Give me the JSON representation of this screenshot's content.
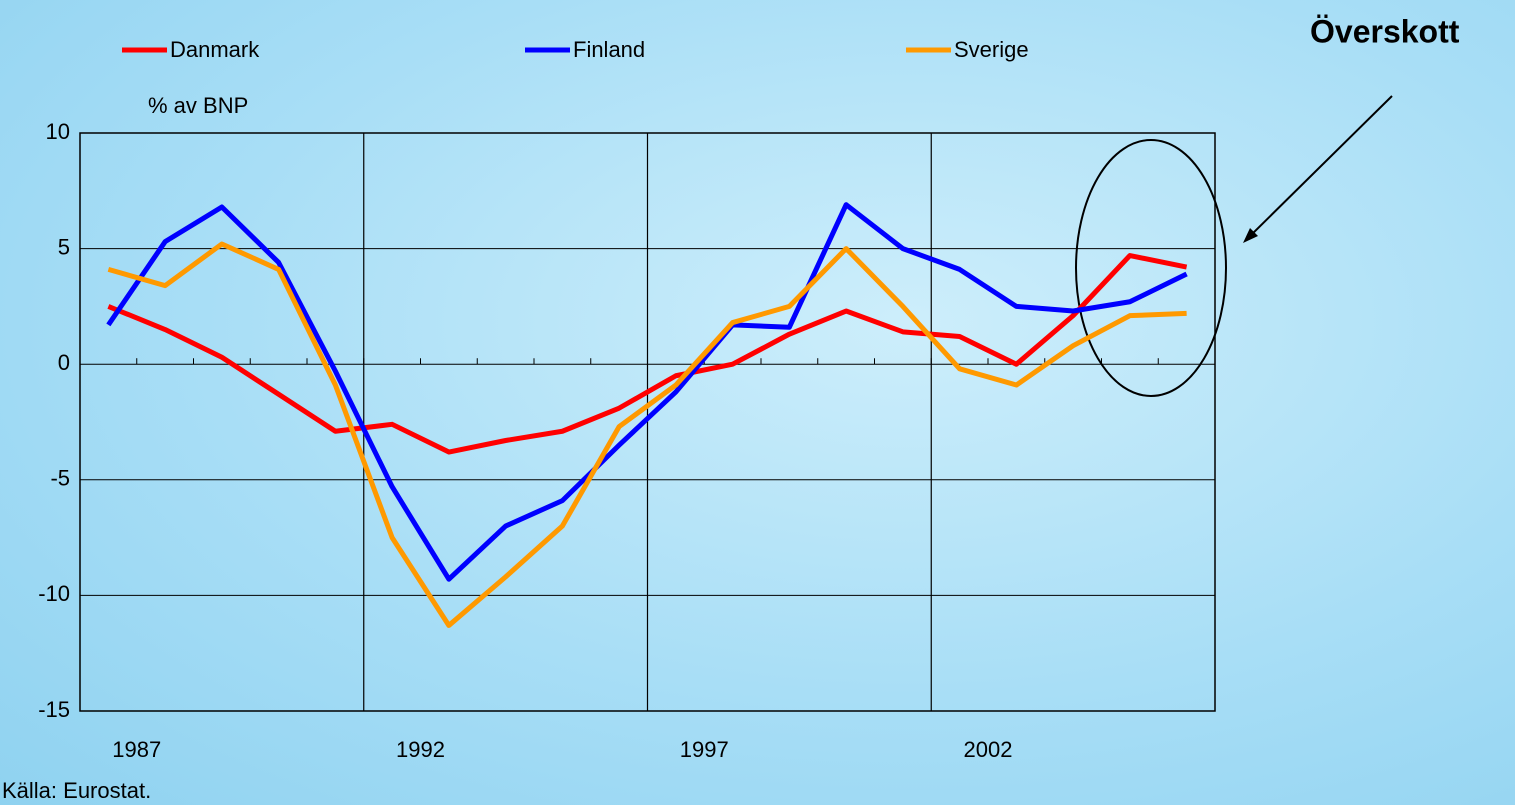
{
  "chart_data": {
    "type": "line",
    "y_label": "% av BNP",
    "annotation": "Överskott",
    "source": "Källa: Eurostat.",
    "categories": [
      "1987",
      null,
      null,
      null,
      null,
      "1992",
      null,
      null,
      null,
      null,
      "1997",
      null,
      null,
      null,
      null,
      "2002",
      null,
      null,
      null,
      null
    ],
    "series": [
      {
        "name": "Danmark",
        "color": "#ff0000",
        "values": [
          2.5,
          1.5,
          0.3,
          -1.3,
          -2.9,
          -2.6,
          -3.8,
          -3.3,
          -2.9,
          -1.9,
          -0.5,
          0.0,
          1.3,
          2.3,
          1.4,
          1.2,
          0.0,
          2.1,
          4.7,
          4.2
        ]
      },
      {
        "name": "Finland",
        "color": "#0000ff",
        "values": [
          1.7,
          5.3,
          6.8,
          4.4,
          -0.3,
          -5.3,
          -9.3,
          -7.0,
          -5.9,
          -3.5,
          -1.2,
          1.7,
          1.6,
          6.9,
          5.0,
          4.1,
          2.5,
          2.3,
          2.7,
          3.9
        ]
      },
      {
        "name": "Sverige",
        "color": "#ff9900",
        "values": [
          4.1,
          3.4,
          5.2,
          4.1,
          -0.9,
          -7.5,
          -11.3,
          -9.2,
          -7.0,
          -2.7,
          -0.9,
          1.8,
          2.5,
          5.0,
          2.5,
          -0.2,
          -0.9,
          0.8,
          2.1,
          2.2
        ]
      }
    ],
    "ylim": [
      -15,
      10
    ],
    "yticks": [
      -15,
      -10,
      -5,
      0,
      5,
      10
    ],
    "grid": true
  }
}
